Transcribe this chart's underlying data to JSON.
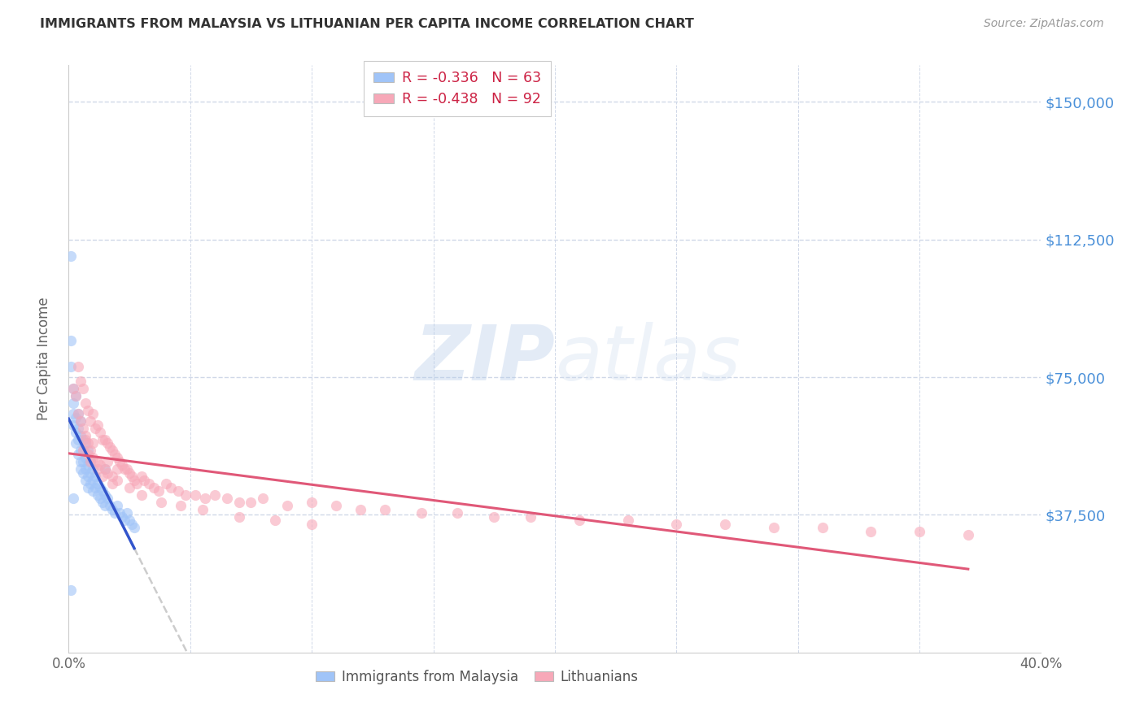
{
  "title": "IMMIGRANTS FROM MALAYSIA VS LITHUANIAN PER CAPITA INCOME CORRELATION CHART",
  "source": "Source: ZipAtlas.com",
  "ylabel": "Per Capita Income",
  "yticks": [
    0,
    37500,
    75000,
    112500,
    150000
  ],
  "ytick_labels": [
    "",
    "$37,500",
    "$75,000",
    "$112,500",
    "$150,000"
  ],
  "ylim": [
    0,
    160000
  ],
  "xlim": [
    0.0,
    0.4
  ],
  "legend_entries": [
    {
      "label": "Immigrants from Malaysia",
      "R": -0.336,
      "N": 63,
      "scatter_color": "#a0c4f8",
      "line_color": "#3355cc"
    },
    {
      "label": "Lithuanians",
      "R": -0.438,
      "N": 92,
      "scatter_color": "#f7a8b8",
      "line_color": "#e05878"
    }
  ],
  "watermark": "ZIPatlas",
  "background_color": "#ffffff",
  "grid_color": "#d0d8e8",
  "title_color": "#333333",
  "source_color": "#999999",
  "axis_label_color": "#666666",
  "ytick_label_color": "#4a90d9",
  "xtick_label_color": "#666666",
  "regression_dashed_color": "#cccccc",
  "scatter_alpha": 0.6,
  "scatter_size": 90,
  "legend_R_color": "#cc2244",
  "legend_N_color": "#3377cc",
  "malaysia_x": [
    0.001,
    0.001,
    0.001,
    0.002,
    0.002,
    0.002,
    0.002,
    0.003,
    0.003,
    0.003,
    0.003,
    0.004,
    0.004,
    0.004,
    0.004,
    0.005,
    0.005,
    0.005,
    0.005,
    0.005,
    0.006,
    0.006,
    0.006,
    0.006,
    0.007,
    0.007,
    0.007,
    0.007,
    0.008,
    0.008,
    0.008,
    0.008,
    0.009,
    0.009,
    0.009,
    0.01,
    0.01,
    0.01,
    0.011,
    0.011,
    0.012,
    0.012,
    0.013,
    0.013,
    0.014,
    0.014,
    0.015,
    0.015,
    0.016,
    0.017,
    0.018,
    0.019,
    0.02,
    0.021,
    0.022,
    0.023,
    0.024,
    0.025,
    0.026,
    0.027,
    0.001,
    0.002,
    0.015
  ],
  "malaysia_y": [
    108000,
    85000,
    78000,
    72000,
    68000,
    65000,
    62000,
    70000,
    64000,
    60000,
    57000,
    65000,
    61000,
    58000,
    54000,
    63000,
    59000,
    55000,
    52000,
    50000,
    58000,
    55000,
    52000,
    49000,
    57000,
    53000,
    50000,
    47000,
    55000,
    51000,
    48000,
    45000,
    52000,
    49000,
    46000,
    50000,
    47000,
    44000,
    48000,
    45000,
    46000,
    43000,
    45000,
    42000,
    44000,
    41000,
    43000,
    40000,
    42000,
    40000,
    39000,
    38000,
    40000,
    38000,
    37000,
    36000,
    38000,
    36000,
    35000,
    34000,
    17000,
    42000,
    50000
  ],
  "lithuanian_x": [
    0.002,
    0.003,
    0.004,
    0.004,
    0.005,
    0.005,
    0.006,
    0.006,
    0.007,
    0.007,
    0.008,
    0.008,
    0.009,
    0.009,
    0.01,
    0.01,
    0.011,
    0.012,
    0.012,
    0.013,
    0.013,
    0.014,
    0.015,
    0.015,
    0.016,
    0.016,
    0.017,
    0.018,
    0.018,
    0.019,
    0.02,
    0.02,
    0.021,
    0.022,
    0.023,
    0.024,
    0.025,
    0.026,
    0.027,
    0.028,
    0.03,
    0.031,
    0.033,
    0.035,
    0.037,
    0.04,
    0.042,
    0.045,
    0.048,
    0.052,
    0.056,
    0.06,
    0.065,
    0.07,
    0.075,
    0.08,
    0.09,
    0.1,
    0.11,
    0.12,
    0.13,
    0.145,
    0.16,
    0.175,
    0.19,
    0.21,
    0.23,
    0.25,
    0.27,
    0.29,
    0.31,
    0.33,
    0.35,
    0.37,
    0.006,
    0.007,
    0.008,
    0.009,
    0.01,
    0.012,
    0.014,
    0.016,
    0.018,
    0.02,
    0.025,
    0.03,
    0.038,
    0.046,
    0.055,
    0.07,
    0.085,
    0.1
  ],
  "lithuanian_y": [
    72000,
    70000,
    78000,
    65000,
    74000,
    63000,
    72000,
    61000,
    68000,
    59000,
    66000,
    57000,
    63000,
    55000,
    65000,
    53000,
    61000,
    62000,
    52000,
    60000,
    51000,
    58000,
    58000,
    50000,
    57000,
    49000,
    56000,
    55000,
    48000,
    54000,
    53000,
    47000,
    52000,
    51000,
    50000,
    50000,
    49000,
    48000,
    47000,
    46000,
    48000,
    47000,
    46000,
    45000,
    44000,
    46000,
    45000,
    44000,
    43000,
    43000,
    42000,
    43000,
    42000,
    41000,
    41000,
    42000,
    40000,
    41000,
    40000,
    39000,
    39000,
    38000,
    38000,
    37000,
    37000,
    36000,
    36000,
    35000,
    35000,
    34000,
    34000,
    33000,
    33000,
    32000,
    55000,
    58000,
    54000,
    52000,
    57000,
    50000,
    48000,
    52000,
    46000,
    50000,
    45000,
    43000,
    41000,
    40000,
    39000,
    37000,
    36000,
    35000
  ]
}
